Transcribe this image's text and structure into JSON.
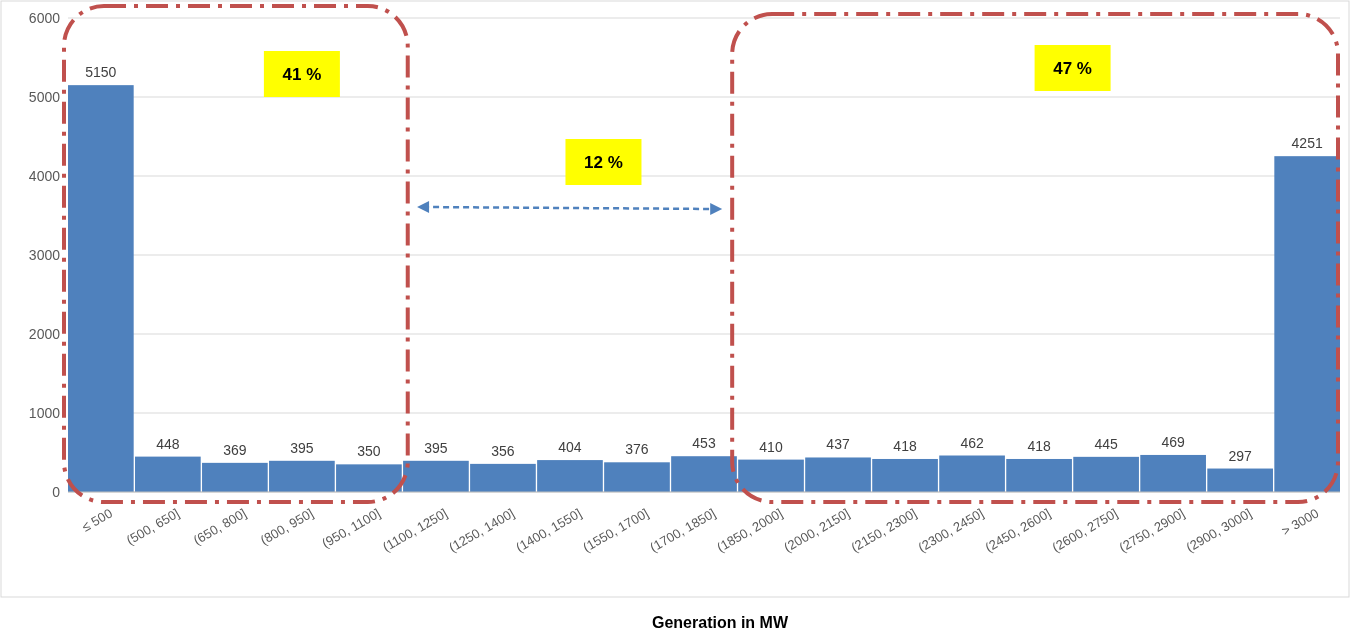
{
  "chart_data": {
    "type": "bar",
    "xlabel": "Generation in MW",
    "categories": [
      "≤ 500",
      "(500, 650]",
      "(650, 800]",
      "(800, 950]",
      "(950, 1100]",
      "(1100, 1250]",
      "(1250, 1400]",
      "(1400, 1550]",
      "(1550, 1700]",
      "(1700, 1850]",
      "(1850, 2000]",
      "(2000, 2150]",
      "(2150, 2300]",
      "(2300, 2450]",
      "(2450, 2600]",
      "(2600, 2750]",
      "(2750, 2900]",
      "(2900, 3000]",
      "> 3000"
    ],
    "values": [
      5150,
      448,
      369,
      395,
      350,
      395,
      356,
      404,
      376,
      453,
      410,
      437,
      418,
      462,
      418,
      445,
      469,
      297,
      4251
    ],
    "color": "#4f81bd",
    "ylim": [
      0,
      6000
    ],
    "yticks": [
      0,
      1000,
      2000,
      3000,
      4000,
      5000,
      6000
    ],
    "grid": "y",
    "data_labels": true,
    "annotations": [
      "41 %",
      "12 %",
      "47 %"
    ]
  }
}
